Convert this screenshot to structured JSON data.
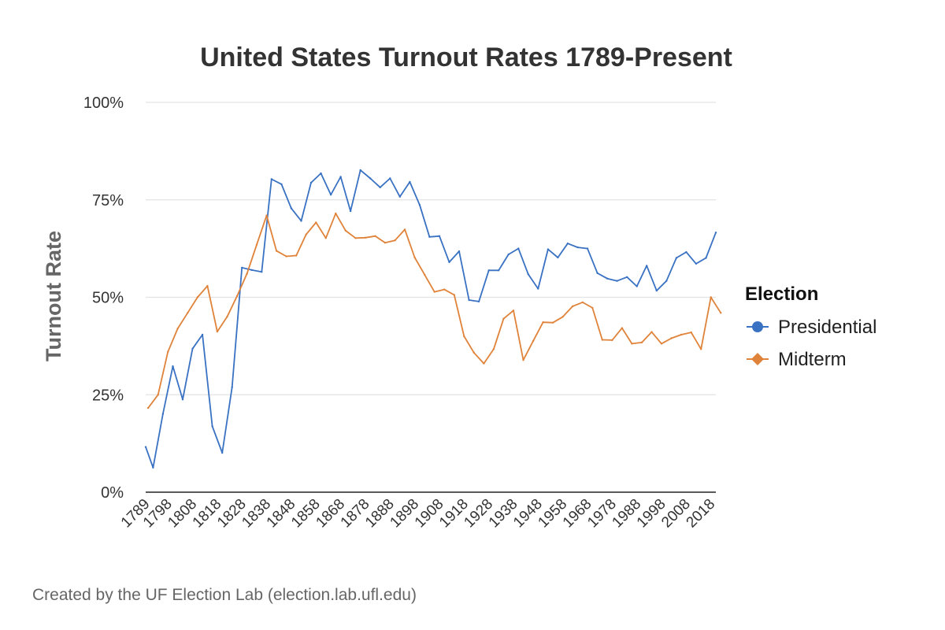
{
  "chart_data": {
    "type": "line",
    "title": "United States Turnout Rates 1789-Present",
    "xlabel": "",
    "ylabel": "Turnout Rate",
    "x_range": [
      1789,
      2020
    ],
    "ylim": [
      0,
      100
    ],
    "y_ticks": [
      "0%",
      "25%",
      "50%",
      "75%",
      "100%"
    ],
    "y_tick_values": [
      0,
      25,
      50,
      75,
      100
    ],
    "x_ticks": [
      "1789",
      "1798",
      "1808",
      "1818",
      "1828",
      "1838",
      "1848",
      "1858",
      "1868",
      "1878",
      "1888",
      "1898",
      "1908",
      "1918",
      "1928",
      "1938",
      "1948",
      "1958",
      "1968",
      "1978",
      "1988",
      "1998",
      "2008",
      "2018"
    ],
    "x_tick_values": [
      1789,
      1798,
      1808,
      1818,
      1828,
      1838,
      1848,
      1858,
      1868,
      1878,
      1888,
      1898,
      1908,
      1918,
      1928,
      1938,
      1948,
      1958,
      1968,
      1978,
      1988,
      1998,
      2008,
      2018
    ],
    "grid": true,
    "legend_position": "right",
    "legend_title": "Election",
    "caption": "Created by the UF Election Lab (election.lab.ufl.edu)",
    "series": [
      {
        "name": "Presidential",
        "color": "#3a72c3",
        "marker": "circle",
        "x": [
          1789,
          1792,
          1796,
          1800,
          1804,
          1808,
          1812,
          1816,
          1820,
          1824,
          1828,
          1832,
          1836,
          1840,
          1844,
          1848,
          1852,
          1856,
          1860,
          1864,
          1868,
          1872,
          1876,
          1880,
          1884,
          1888,
          1892,
          1896,
          1900,
          1904,
          1908,
          1912,
          1916,
          1920,
          1924,
          1928,
          1932,
          1936,
          1940,
          1944,
          1948,
          1952,
          1956,
          1960,
          1964,
          1968,
          1972,
          1976,
          1980,
          1984,
          1988,
          1992,
          1996,
          2000,
          2004,
          2008,
          2012,
          2016,
          2020
        ],
        "y": [
          11.6,
          6.3,
          20.1,
          32.3,
          23.8,
          36.8,
          40.4,
          16.9,
          10.1,
          26.9,
          57.6,
          57.0,
          56.5,
          80.3,
          79.0,
          72.8,
          69.6,
          79.4,
          81.8,
          76.3,
          80.9,
          72.1,
          82.6,
          80.5,
          78.2,
          80.5,
          75.8,
          79.6,
          73.7,
          65.5,
          65.7,
          59.0,
          61.8,
          49.3,
          48.9,
          56.9,
          56.9,
          61.0,
          62.5,
          55.9,
          52.2,
          62.3,
          60.2,
          63.8,
          62.8,
          62.5,
          56.2,
          54.8,
          54.2,
          55.2,
          52.8,
          58.1,
          51.7,
          54.2,
          60.1,
          61.6,
          58.6,
          60.1,
          66.6
        ]
      },
      {
        "name": "Midterm",
        "color": "#e0833a",
        "marker": "diamond",
        "x": [
          1790,
          1794,
          1798,
          1802,
          1806,
          1810,
          1814,
          1818,
          1822,
          1826,
          1830,
          1834,
          1838,
          1842,
          1846,
          1850,
          1854,
          1858,
          1862,
          1866,
          1870,
          1874,
          1878,
          1882,
          1886,
          1890,
          1894,
          1898,
          1902,
          1906,
          1910,
          1914,
          1918,
          1922,
          1926,
          1930,
          1934,
          1938,
          1942,
          1946,
          1950,
          1954,
          1958,
          1962,
          1966,
          1970,
          1974,
          1978,
          1982,
          1986,
          1990,
          1994,
          1998,
          2002,
          2006,
          2010,
          2014,
          2018,
          2022
        ],
        "y": [
          21.6,
          25.0,
          36.0,
          42.0,
          46.0,
          50.0,
          52.9,
          41.2,
          45.0,
          50.3,
          56.0,
          63.5,
          71.0,
          61.9,
          60.5,
          60.7,
          66.1,
          69.2,
          65.2,
          71.5,
          67.1,
          65.2,
          65.3,
          65.7,
          64.0,
          64.6,
          67.4,
          60.2,
          55.8,
          51.4,
          52.0,
          50.6,
          40.0,
          35.8,
          33.0,
          36.7,
          44.5,
          46.6,
          33.9,
          38.8,
          43.6,
          43.5,
          45.0,
          47.7,
          48.7,
          47.3,
          39.1,
          39.0,
          42.1,
          38.1,
          38.4,
          41.1,
          38.1,
          39.5,
          40.4,
          41.0,
          36.7,
          50.0,
          46.0
        ]
      }
    ]
  }
}
